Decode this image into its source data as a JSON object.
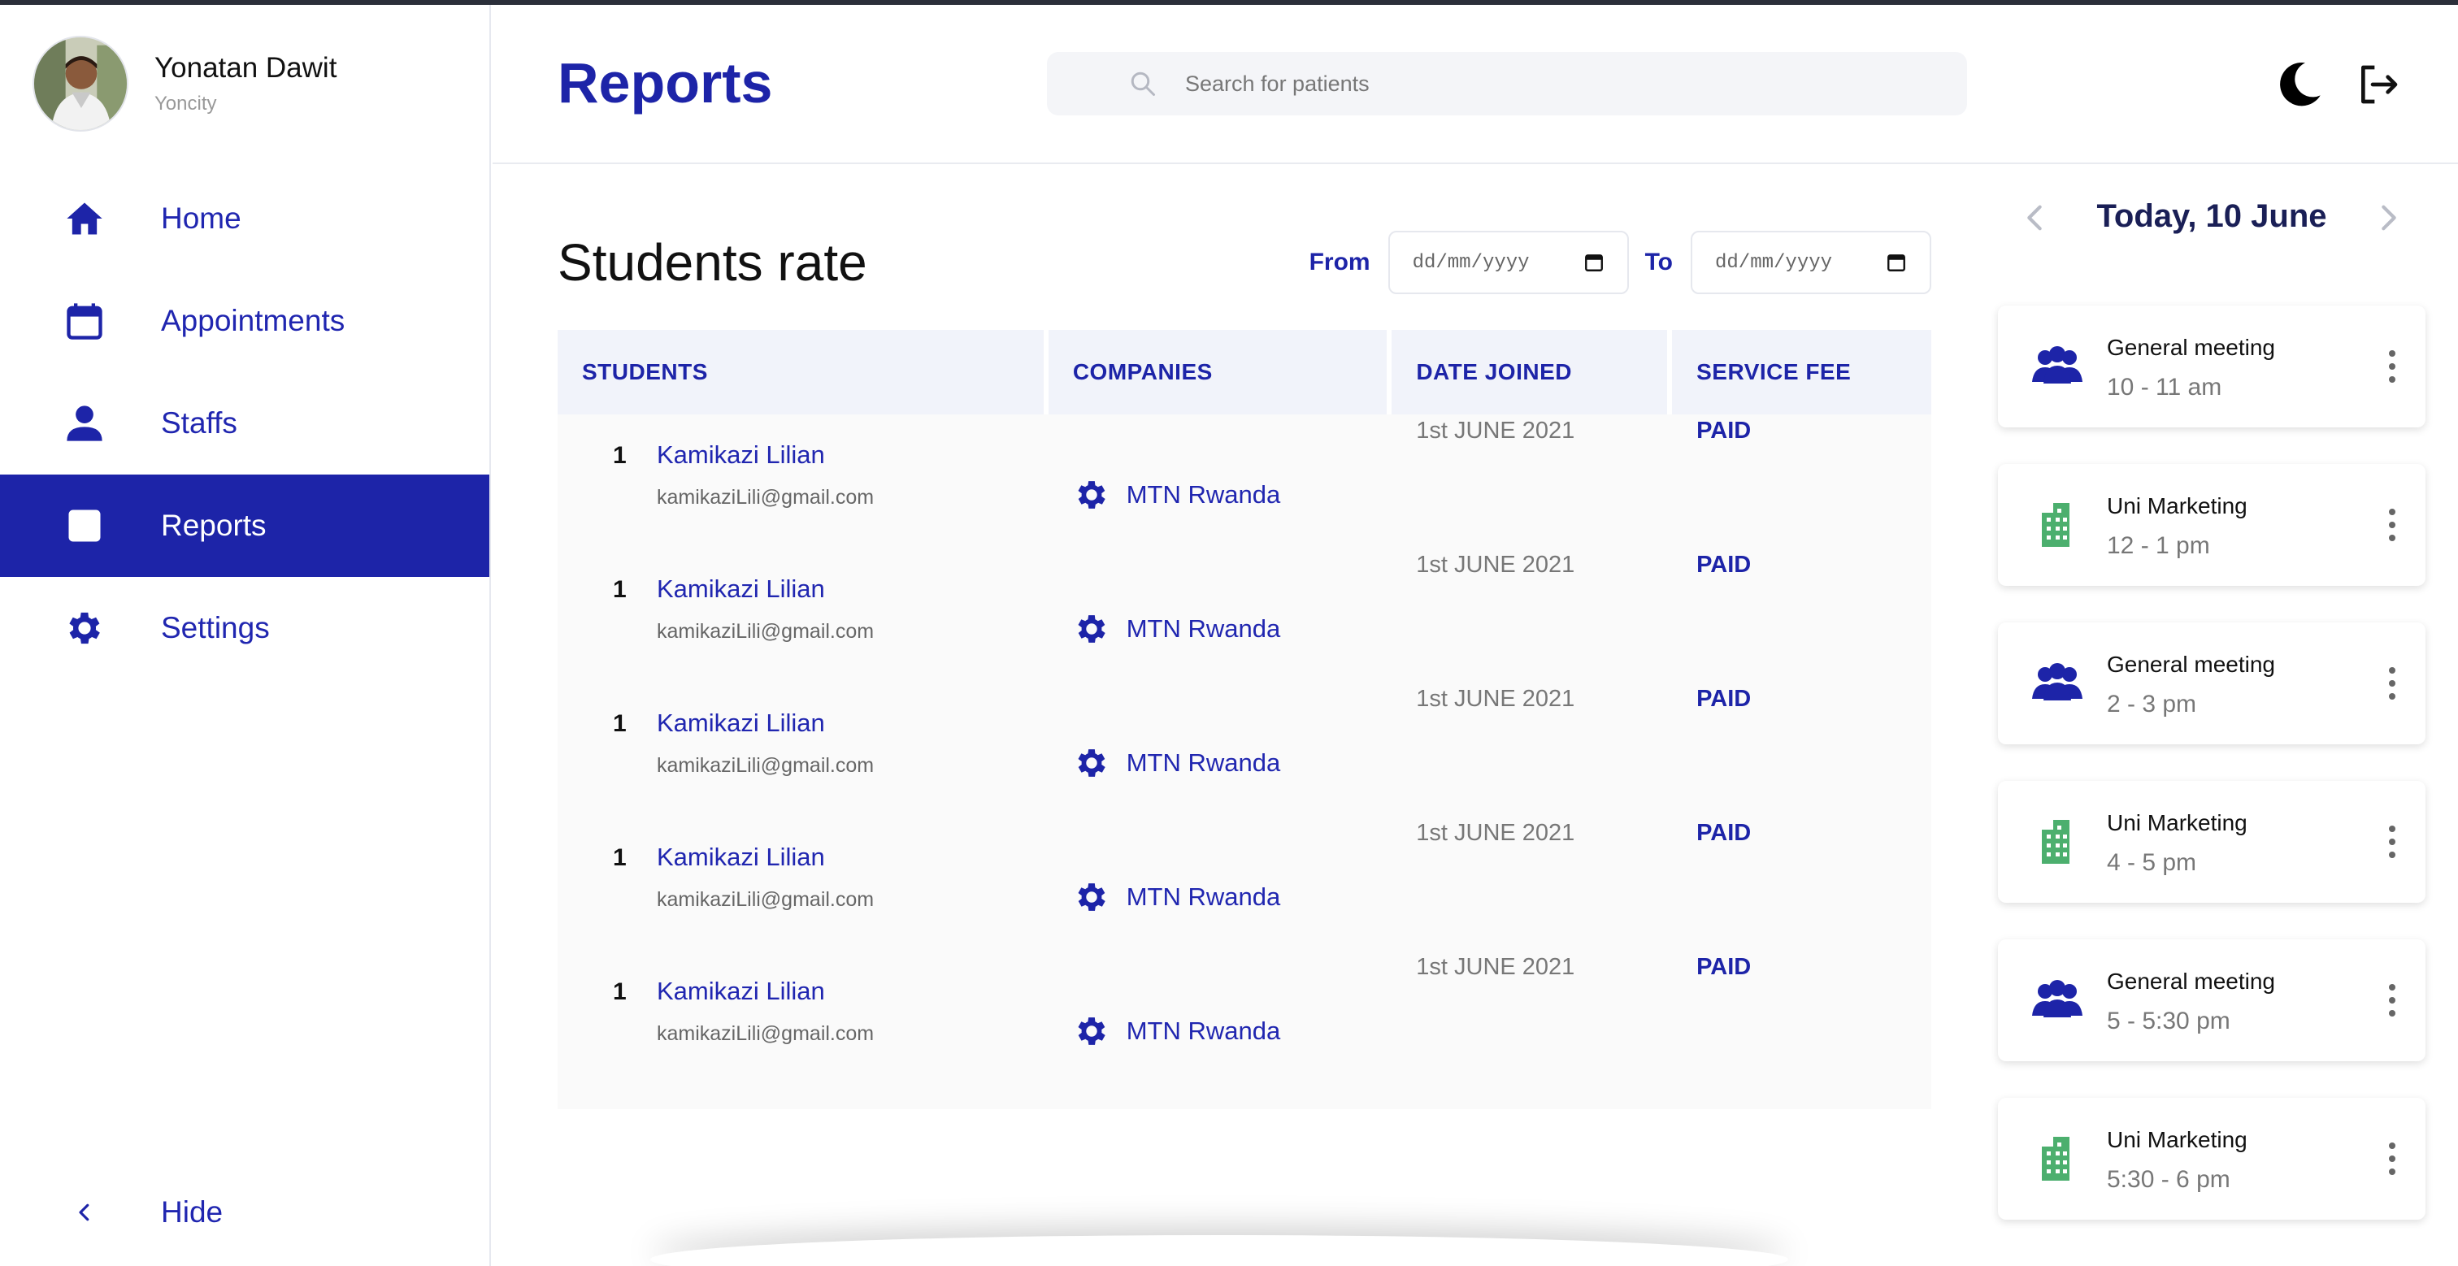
{
  "user": {
    "name": "Yonatan Dawit",
    "subtitle": "Yoncity"
  },
  "nav": [
    {
      "label": "Home",
      "icon": "home-icon",
      "active": false
    },
    {
      "label": "Appointments",
      "icon": "calendar-icon",
      "active": false
    },
    {
      "label": "Staffs",
      "icon": "person-icon",
      "active": false
    },
    {
      "label": "Reports",
      "icon": "document-icon",
      "active": true
    },
    {
      "label": "Settings",
      "icon": "gear-icon",
      "active": false
    }
  ],
  "hide_label": "Hide",
  "header": {
    "title": "Reports",
    "search_placeholder": "Search for patients"
  },
  "main": {
    "section_title": "Students rate",
    "from_label": "From",
    "to_label": "To",
    "from_value": "dd/mm/yyyy",
    "to_value": "dd/mm/yyyy",
    "columns": [
      "STUDENTS",
      "COMPANIES",
      "DATE JOINED",
      "SERVICE FEE"
    ],
    "rows": [
      {
        "num": "1",
        "name": "Kamikazi Lilian",
        "email": "kamikaziLili@gmail.com",
        "company": "MTN Rwanda",
        "date": "1st JUNE 2021",
        "fee": "PAID"
      },
      {
        "num": "1",
        "name": "Kamikazi Lilian",
        "email": "kamikaziLili@gmail.com",
        "company": "MTN Rwanda",
        "date": "1st JUNE 2021",
        "fee": "PAID"
      },
      {
        "num": "1",
        "name": "Kamikazi Lilian",
        "email": "kamikaziLili@gmail.com",
        "company": "MTN Rwanda",
        "date": "1st JUNE 2021",
        "fee": "PAID"
      },
      {
        "num": "1",
        "name": "Kamikazi Lilian",
        "email": "kamikaziLili@gmail.com",
        "company": "MTN Rwanda",
        "date": "1st JUNE 2021",
        "fee": "PAID"
      },
      {
        "num": "1",
        "name": "Kamikazi Lilian",
        "email": "kamikaziLili@gmail.com",
        "company": "MTN Rwanda",
        "date": "1st JUNE 2021",
        "fee": "PAID"
      }
    ]
  },
  "schedule": {
    "date_label": "Today, 10 June",
    "events": [
      {
        "title": "General meeting",
        "time": "10 - 11 am",
        "icon": "group-icon"
      },
      {
        "title": "Uni Marketing",
        "time": "12 - 1 pm",
        "icon": "building-icon"
      },
      {
        "title": "General meeting",
        "time": "2 - 3 pm",
        "icon": "group-icon"
      },
      {
        "title": "Uni Marketing",
        "time": "4 - 5 pm",
        "icon": "building-icon"
      },
      {
        "title": "General meeting",
        "time": "5 - 5:30 pm",
        "icon": "group-icon"
      },
      {
        "title": "Uni Marketing",
        "time": "5:30 - 6 pm",
        "icon": "building-icon"
      }
    ]
  },
  "colors": {
    "accent": "#1d24a8",
    "link": "#2026b0",
    "header_bg": "#f1f3fa",
    "building_green": "#4caf6e",
    "date_heading": "#1a1f56"
  }
}
